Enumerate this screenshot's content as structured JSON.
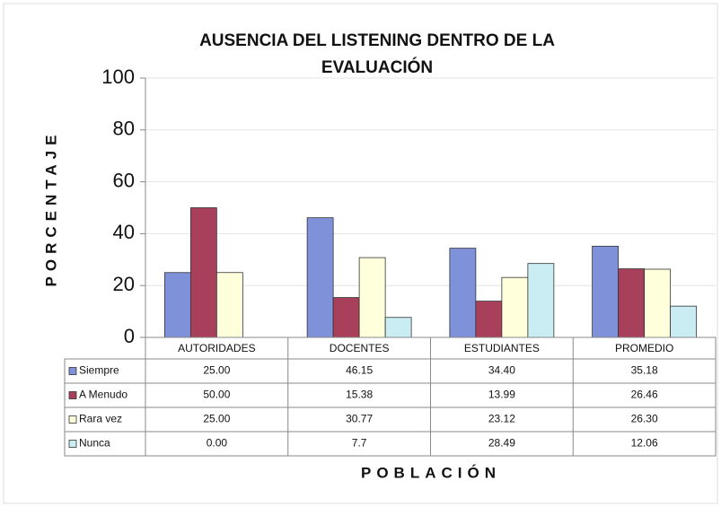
{
  "chart_data": {
    "type": "bar",
    "title": [
      "AUSENCIA  DEL LISTENING DENTRO DE LA",
      "EVALUACIÓN"
    ],
    "y_label": "PORCENTAJE",
    "x_label": "POBLACIÓN",
    "categories": [
      "AUTORIDADES",
      "DOCENTES",
      "ESTUDIANTES",
      "PROMEDIO"
    ],
    "series": [
      {
        "name": "Siempre",
        "color": "#7f91d8",
        "values": [
          25,
          46.15,
          34.4,
          35.18
        ],
        "value_labels": [
          "25.00",
          "46.15",
          "34.40",
          "35.18"
        ]
      },
      {
        "name": "A Menudo",
        "color": "#a8405c",
        "values": [
          50,
          15.38,
          13.99,
          26.46
        ],
        "value_labels": [
          "50.00",
          "15.38",
          "13.99",
          "26.46"
        ]
      },
      {
        "name": "Rara vez",
        "color": "#ffffdc",
        "values": [
          25,
          30.77,
          23.12,
          26.3
        ],
        "value_labels": [
          "25.00",
          "30.77",
          "23.12",
          "26.30"
        ]
      },
      {
        "name": "Nunca",
        "color": "#c9edf3",
        "values": [
          0,
          7.7,
          28.49,
          12.06
        ],
        "value_labels": [
          "0.00",
          "7.7",
          "28.49",
          "12.06"
        ]
      }
    ],
    "ylim": [
      0,
      100
    ],
    "yticks": [
      0,
      20,
      40,
      60,
      80,
      100
    ],
    "grid": true
  }
}
